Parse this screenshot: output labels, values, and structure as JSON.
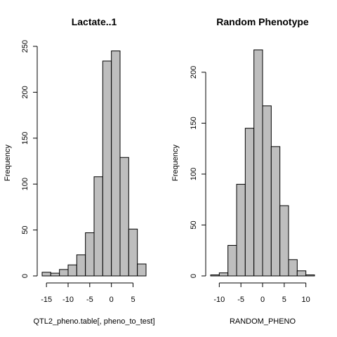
{
  "chart_data": [
    {
      "type": "bar",
      "title": "Lactate..1",
      "xlabel": "QTL2_pheno.table[, pheno_to_test]",
      "ylabel": "Frequency",
      "bin_width": 2,
      "bin_start": -16,
      "values": [
        4,
        3,
        7,
        12,
        23,
        47,
        108,
        234,
        245,
        129,
        51,
        13
      ],
      "xlim": [
        -16,
        8
      ],
      "ylim": [
        0,
        250
      ],
      "x_ticks": [
        -15,
        -10,
        -5,
        0,
        5
      ],
      "x_tick_labels": [
        "-15",
        "-10",
        "-5",
        "0",
        "5"
      ],
      "y_ticks": [
        0,
        50,
        100,
        150,
        200,
        250
      ],
      "y_tick_labels": [
        "0",
        "50",
        "100",
        "150",
        "200",
        "250"
      ],
      "grid": false
    },
    {
      "type": "bar",
      "title": "Random Phenotype",
      "xlabel": "RANDOM_PHENO",
      "ylabel": "Frequency",
      "bin_width": 2,
      "bin_start": -12,
      "values": [
        1,
        3,
        30,
        90,
        145,
        222,
        167,
        127,
        69,
        16,
        5,
        1
      ],
      "xlim": [
        -12,
        12
      ],
      "ylim": [
        0,
        222
      ],
      "x_ticks": [
        -10,
        -5,
        0,
        5,
        10
      ],
      "x_tick_labels": [
        "-10",
        "-5",
        "0",
        "5",
        "10"
      ],
      "y_ticks": [
        0,
        50,
        100,
        150,
        200
      ],
      "y_tick_labels": [
        "0",
        "50",
        "100",
        "150",
        "200"
      ],
      "grid": false
    }
  ]
}
